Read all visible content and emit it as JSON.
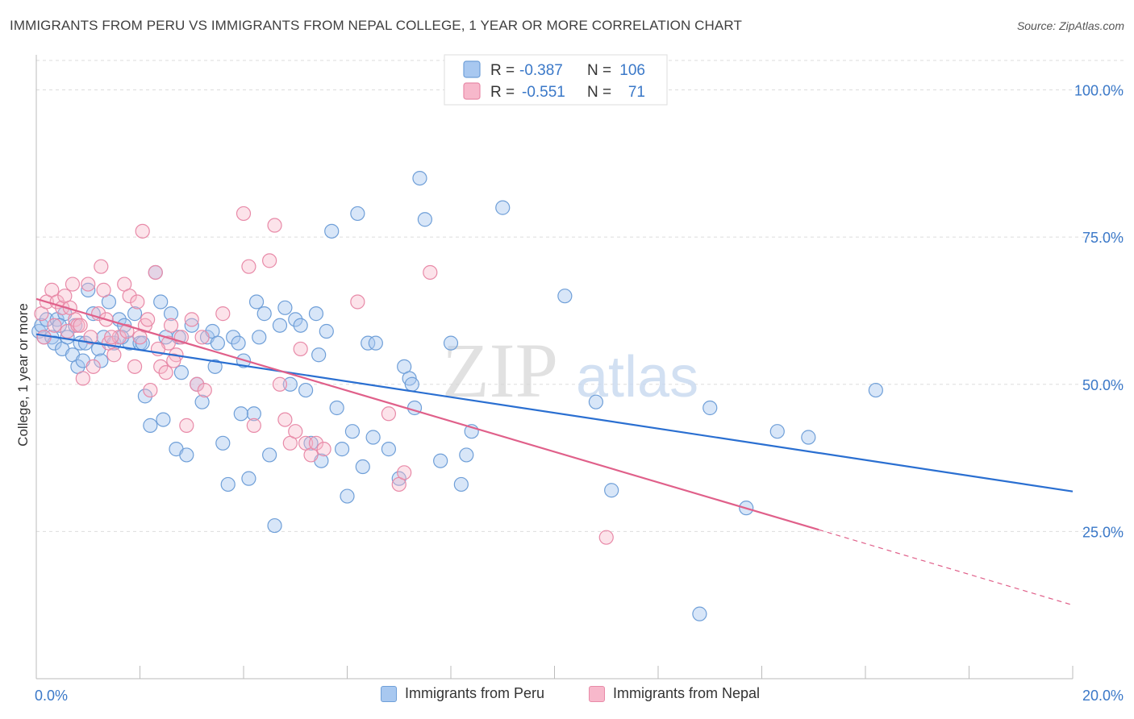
{
  "header": {
    "title": "IMMIGRANTS FROM PERU VS IMMIGRANTS FROM NEPAL COLLEGE, 1 YEAR OR MORE CORRELATION CHART",
    "source": "Source: ZipAtlas.com"
  },
  "watermark": {
    "part1": "ZIP",
    "part2": "atlas"
  },
  "colors": {
    "peru_fill": "#a8c8f0",
    "peru_stroke": "#6f9fd8",
    "peru_line": "#2a6fd1",
    "nepal_fill": "#f7b8cb",
    "nepal_stroke": "#e88aa8",
    "nepal_line": "#e0608a",
    "value_text": "#3a78c8",
    "grid": "#dddddd"
  },
  "legend": {
    "rows": [
      {
        "r_label": "R =",
        "r_value": "-0.387",
        "n_label": "N =",
        "n_value": "106"
      },
      {
        "r_label": "R =",
        "r_value": "-0.551",
        "n_label": "N =",
        "n_value": "71"
      }
    ]
  },
  "chart_data": {
    "type": "scatter",
    "title": "IMMIGRANTS FROM PERU VS IMMIGRANTS FROM NEPAL COLLEGE, 1 YEAR OR MORE CORRELATION CHART",
    "xlabel": "",
    "ylabel": "College, 1 year or more",
    "xlim": [
      0,
      20
    ],
    "ylim": [
      0,
      105
    ],
    "x_tick_labels": [
      "0.0%",
      "20.0%"
    ],
    "y_tick_labels": [
      "25.0%",
      "50.0%",
      "75.0%",
      "100.0%"
    ],
    "y_ticks": [
      25,
      50,
      75,
      100
    ],
    "grid": true,
    "legend_position": "top-center",
    "series": [
      {
        "name": "Immigrants from Peru",
        "r": -0.387,
        "n": 106,
        "trend": {
          "x0": 0,
          "y0": 58.5,
          "x1": 20,
          "y1": 31.8
        },
        "points": [
          [
            0.05,
            59
          ],
          [
            0.1,
            60
          ],
          [
            0.15,
            58
          ],
          [
            0.2,
            61
          ],
          [
            0.3,
            58
          ],
          [
            0.35,
            57
          ],
          [
            0.4,
            61
          ],
          [
            0.5,
            56
          ],
          [
            0.55,
            62
          ],
          [
            0.6,
            58
          ],
          [
            0.7,
            55
          ],
          [
            0.75,
            60
          ],
          [
            0.8,
            53
          ],
          [
            0.85,
            57
          ],
          [
            0.9,
            54
          ],
          [
            1.0,
            66
          ],
          [
            1.1,
            62
          ],
          [
            1.2,
            56
          ],
          [
            1.3,
            58
          ],
          [
            1.4,
            64
          ],
          [
            1.5,
            57
          ],
          [
            1.6,
            61
          ],
          [
            1.7,
            60
          ],
          [
            1.8,
            57
          ],
          [
            1.9,
            62
          ],
          [
            2.0,
            57
          ],
          [
            2.1,
            48
          ],
          [
            2.2,
            43
          ],
          [
            2.3,
            69
          ],
          [
            2.4,
            64
          ],
          [
            2.5,
            58
          ],
          [
            2.6,
            62
          ],
          [
            2.7,
            39
          ],
          [
            2.8,
            52
          ],
          [
            2.9,
            38
          ],
          [
            3.0,
            60
          ],
          [
            3.1,
            50
          ],
          [
            3.2,
            47
          ],
          [
            3.3,
            58
          ],
          [
            3.4,
            59
          ],
          [
            3.5,
            57
          ],
          [
            3.6,
            40
          ],
          [
            3.7,
            33
          ],
          [
            3.8,
            58
          ],
          [
            3.9,
            57
          ],
          [
            4.0,
            54
          ],
          [
            4.1,
            34
          ],
          [
            4.2,
            45
          ],
          [
            4.3,
            58
          ],
          [
            4.4,
            62
          ],
          [
            4.5,
            38
          ],
          [
            4.6,
            26
          ],
          [
            4.7,
            60
          ],
          [
            4.8,
            63
          ],
          [
            4.9,
            50
          ],
          [
            5.0,
            61
          ],
          [
            5.1,
            60
          ],
          [
            5.2,
            49
          ],
          [
            5.3,
            40
          ],
          [
            5.4,
            62
          ],
          [
            5.5,
            37
          ],
          [
            5.6,
            59
          ],
          [
            5.7,
            76
          ],
          [
            5.8,
            46
          ],
          [
            5.9,
            39
          ],
          [
            6.0,
            31
          ],
          [
            6.1,
            42
          ],
          [
            6.2,
            79
          ],
          [
            6.3,
            36
          ],
          [
            6.4,
            57
          ],
          [
            6.5,
            41
          ],
          [
            6.8,
            39
          ],
          [
            7.0,
            34
          ],
          [
            7.1,
            53
          ],
          [
            7.2,
            51
          ],
          [
            7.3,
            46
          ],
          [
            7.4,
            85
          ],
          [
            7.5,
            78
          ],
          [
            7.8,
            37
          ],
          [
            8.0,
            57
          ],
          [
            8.2,
            33
          ],
          [
            8.3,
            38
          ],
          [
            8.4,
            42
          ],
          [
            9.0,
            80
          ],
          [
            10.2,
            65
          ],
          [
            10.8,
            47
          ],
          [
            11.1,
            32
          ],
          [
            13.0,
            46
          ],
          [
            13.7,
            29
          ],
          [
            14.3,
            42
          ],
          [
            14.9,
            41
          ],
          [
            16.2,
            49
          ],
          [
            12.8,
            11
          ],
          [
            2.05,
            57
          ],
          [
            1.25,
            54
          ],
          [
            0.45,
            60
          ],
          [
            2.75,
            58
          ],
          [
            3.95,
            45
          ],
          [
            1.65,
            58
          ],
          [
            0.95,
            57
          ],
          [
            2.45,
            44
          ],
          [
            4.25,
            64
          ],
          [
            5.45,
            55
          ],
          [
            6.55,
            57
          ],
          [
            7.25,
            50
          ],
          [
            3.45,
            53
          ]
        ]
      },
      {
        "name": "Immigrants from Nepal",
        "r": -0.551,
        "n": 71,
        "trend": {
          "x0": 0,
          "y0": 64.5,
          "x1": 15.1,
          "y1": 25.3
        },
        "trend_dashed": {
          "x0": 15.1,
          "y0": 25.3,
          "x1": 20,
          "y1": 12.5
        },
        "points": [
          [
            0.1,
            62
          ],
          [
            0.2,
            64
          ],
          [
            0.3,
            66
          ],
          [
            0.35,
            60
          ],
          [
            0.4,
            64
          ],
          [
            0.5,
            63
          ],
          [
            0.6,
            59
          ],
          [
            0.7,
            67
          ],
          [
            0.75,
            61
          ],
          [
            0.8,
            60
          ],
          [
            0.9,
            51
          ],
          [
            1.0,
            67
          ],
          [
            1.1,
            53
          ],
          [
            1.2,
            62
          ],
          [
            1.25,
            70
          ],
          [
            1.3,
            66
          ],
          [
            1.4,
            57
          ],
          [
            1.5,
            55
          ],
          [
            1.6,
            58
          ],
          [
            1.7,
            67
          ],
          [
            1.8,
            65
          ],
          [
            1.9,
            53
          ],
          [
            2.0,
            58
          ],
          [
            2.05,
            76
          ],
          [
            2.1,
            60
          ],
          [
            2.2,
            49
          ],
          [
            2.3,
            69
          ],
          [
            2.4,
            53
          ],
          [
            2.5,
            52
          ],
          [
            2.6,
            60
          ],
          [
            2.7,
            55
          ],
          [
            2.8,
            58
          ],
          [
            2.9,
            43
          ],
          [
            3.0,
            61
          ],
          [
            3.1,
            50
          ],
          [
            3.2,
            58
          ],
          [
            3.6,
            62
          ],
          [
            4.0,
            79
          ],
          [
            4.1,
            70
          ],
          [
            4.2,
            43
          ],
          [
            4.5,
            71
          ],
          [
            4.6,
            77
          ],
          [
            4.7,
            50
          ],
          [
            4.8,
            44
          ],
          [
            4.9,
            40
          ],
          [
            5.0,
            42
          ],
          [
            5.1,
            56
          ],
          [
            5.2,
            40
          ],
          [
            5.3,
            38
          ],
          [
            5.4,
            40
          ],
          [
            6.2,
            64
          ],
          [
            6.8,
            45
          ],
          [
            7.0,
            33
          ],
          [
            7.1,
            35
          ],
          [
            7.6,
            69
          ],
          [
            11.0,
            24
          ],
          [
            0.55,
            65
          ],
          [
            0.15,
            58
          ],
          [
            1.45,
            58
          ],
          [
            2.15,
            61
          ],
          [
            1.05,
            58
          ],
          [
            0.65,
            63
          ],
          [
            2.55,
            57
          ],
          [
            1.75,
            59
          ],
          [
            2.35,
            56
          ],
          [
            3.25,
            49
          ],
          [
            5.55,
            39
          ],
          [
            0.85,
            60
          ],
          [
            1.35,
            61
          ],
          [
            1.95,
            64
          ],
          [
            2.65,
            54
          ]
        ]
      }
    ]
  }
}
